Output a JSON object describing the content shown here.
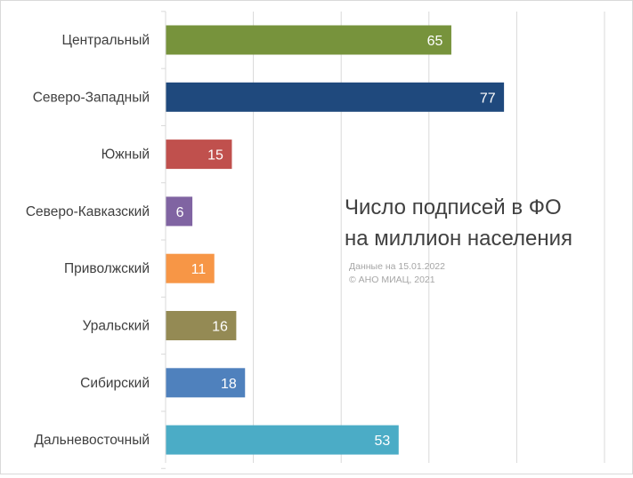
{
  "chart_data": {
    "type": "bar",
    "orientation": "horizontal",
    "title": [
      "Число подписей в ФО",
      "на миллион населения"
    ],
    "notes": [
      "Данные на 15.01.2022",
      "© АНО МИАЦ, 2021"
    ],
    "categories": [
      "Центральный",
      "Северо-Западный",
      "Южный",
      "Северо-Кавказский",
      "Приволжский",
      "Уральский",
      "Сибирский",
      "Дальневосточный"
    ],
    "values": [
      65,
      77,
      15,
      6,
      11,
      16,
      18,
      53
    ],
    "colors": [
      "#77933c",
      "#1f497d",
      "#c0504d",
      "#8064a2",
      "#f79646",
      "#948a54",
      "#4f81bd",
      "#4bacc6"
    ],
    "xlim": [
      0,
      100
    ],
    "grid": true,
    "data_labels": true
  }
}
